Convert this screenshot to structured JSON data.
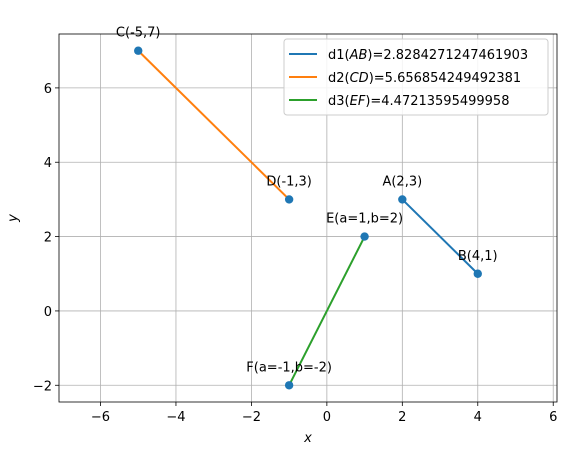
{
  "chart_data": {
    "type": "line",
    "xlabel": "x",
    "ylabel": "y",
    "xlim": [
      -7.1,
      6.1
    ],
    "ylim": [
      -2.45,
      7.45
    ],
    "xticks": [
      -6,
      -4,
      -2,
      0,
      2,
      4,
      6
    ],
    "yticks": [
      -2,
      0,
      2,
      4,
      6
    ],
    "xtick_labels": [
      "−6",
      "−4",
      "−2",
      "0",
      "2",
      "4",
      "6"
    ],
    "ytick_labels": [
      "−2",
      "0",
      "2",
      "4",
      "6"
    ],
    "grid": true,
    "legend_position": "top-right",
    "series": [
      {
        "legend_prefix": "d1(",
        "legend_var": "AB",
        "legend_suffix": ")=2.8284271247461903",
        "color": "#1f77b4",
        "points": [
          [
            2,
            3
          ],
          [
            4,
            1
          ]
        ]
      },
      {
        "legend_prefix": "d2(",
        "legend_var": "CD",
        "legend_suffix": ")=5.656854249492381",
        "color": "#ff7f0e",
        "points": [
          [
            -5,
            7
          ],
          [
            -1,
            3
          ]
        ]
      },
      {
        "legend_prefix": "d3(",
        "legend_var": "EF",
        "legend_suffix": ")=4.47213595499958",
        "color": "#2ca02c",
        "points": [
          [
            1,
            2
          ],
          [
            -1,
            -2
          ]
        ]
      }
    ],
    "scatter_color": "#1f77b4",
    "points": [
      {
        "label": "A(2,3)",
        "x": 2,
        "y": 3
      },
      {
        "label": "B(4,1)",
        "x": 4,
        "y": 1
      },
      {
        "label": "C(-5,7)",
        "x": -5,
        "y": 7
      },
      {
        "label": "D(-1,3)",
        "x": -1,
        "y": 3
      },
      {
        "label": "E(a=1,b=2)",
        "x": 1,
        "y": 2
      },
      {
        "label": "F(a=-1,b=-2)",
        "x": -1,
        "y": -2
      }
    ]
  }
}
